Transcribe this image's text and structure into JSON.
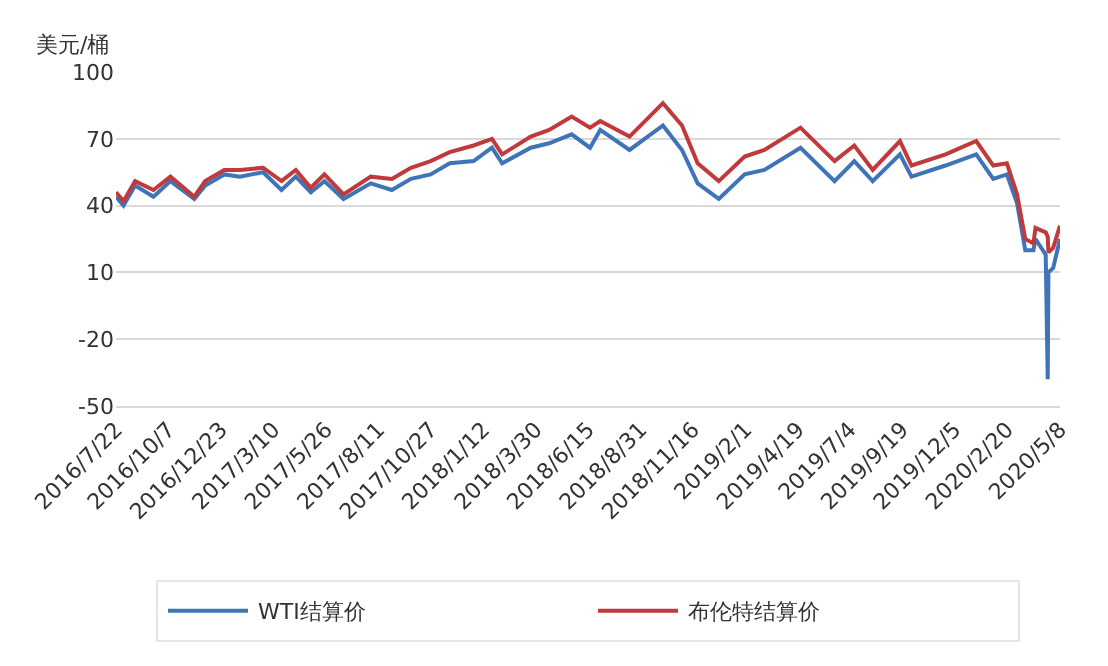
{
  "chart_data": {
    "type": "line",
    "ylabel": "美元/桶",
    "x": [
      "2016-07-22",
      "2016-08-02",
      "2016-08-19",
      "2016-09-15",
      "2016-10-10",
      "2016-11-14",
      "2016-11-30",
      "2016-12-28",
      "2017-01-20",
      "2017-02-23",
      "2017-03-22",
      "2017-04-12",
      "2017-05-04",
      "2017-05-24",
      "2017-06-21",
      "2017-07-31",
      "2017-08-31",
      "2017-09-28",
      "2017-10-27",
      "2017-11-24",
      "2017-12-29",
      "2018-01-25",
      "2018-02-09",
      "2018-03-23",
      "2018-04-19",
      "2018-05-22",
      "2018-06-18",
      "2018-07-03",
      "2018-08-15",
      "2018-10-03",
      "2018-10-31",
      "2018-11-23",
      "2018-12-24",
      "2019-01-31",
      "2019-03-01",
      "2019-04-23",
      "2019-06-12",
      "2019-07-11",
      "2019-08-07",
      "2019-09-16",
      "2019-10-03",
      "2019-11-22",
      "2020-01-06",
      "2020-01-31",
      "2020-02-20",
      "2020-03-06",
      "2020-03-18",
      "2020-03-30",
      "2020-04-02",
      "2020-04-17",
      "2020-04-20",
      "2020-04-21",
      "2020-04-28",
      "2020-05-08"
    ],
    "series": [
      {
        "name": "WTI结算价",
        "color": "#3f74b8",
        "values": [
          44,
          40,
          49,
          44,
          51,
          43,
          49,
          54,
          53,
          55,
          47,
          53,
          46,
          51,
          43,
          50,
          47,
          52,
          54,
          59,
          60,
          66,
          59,
          66,
          68,
          72,
          66,
          74,
          65,
          76,
          65,
          50,
          43,
          54,
          56,
          66,
          51,
          60,
          51,
          63,
          53,
          58,
          63,
          52,
          54,
          41,
          20,
          20,
          25,
          18,
          -38,
          10,
          12,
          25
        ]
      },
      {
        "name": "布伦特结算价",
        "color": "#c0393b",
        "values": [
          46,
          42,
          51,
          47,
          53,
          44,
          51,
          56,
          56,
          57,
          51,
          56,
          48,
          54,
          45,
          53,
          52,
          57,
          60,
          64,
          67,
          70,
          63,
          71,
          74,
          80,
          75,
          78,
          71,
          86,
          76,
          59,
          51,
          62,
          65,
          75,
          60,
          67,
          56,
          69,
          58,
          63,
          69,
          58,
          59,
          45,
          25,
          23,
          30,
          28,
          26,
          19,
          21,
          31
        ]
      }
    ],
    "ylim": [
      -50,
      100
    ],
    "yticks": [
      -50,
      -20,
      10,
      40,
      70,
      100
    ],
    "xlim": [
      "2016-07-22",
      "2020-05-08"
    ],
    "xticks": [
      {
        "value": "2016-07-22",
        "label": "2016/7/22"
      },
      {
        "value": "2016-10-07",
        "label": "2016/10/7"
      },
      {
        "value": "2016-12-23",
        "label": "2016/12/23"
      },
      {
        "value": "2017-03-10",
        "label": "2017/3/10"
      },
      {
        "value": "2017-05-26",
        "label": "2017/5/26"
      },
      {
        "value": "2017-08-11",
        "label": "2017/8/11"
      },
      {
        "value": "2017-10-27",
        "label": "2017/10/27"
      },
      {
        "value": "2018-01-12",
        "label": "2018/1/12"
      },
      {
        "value": "2018-03-30",
        "label": "2018/3/30"
      },
      {
        "value": "2018-06-15",
        "label": "2018/6/15"
      },
      {
        "value": "2018-08-31",
        "label": "2018/8/31"
      },
      {
        "value": "2018-11-16",
        "label": "2018/11/16"
      },
      {
        "value": "2019-02-01",
        "label": "2019/2/1"
      },
      {
        "value": "2019-04-19",
        "label": "2019/4/19"
      },
      {
        "value": "2019-07-04",
        "label": "2019/7/4"
      },
      {
        "value": "2019-09-19",
        "label": "2019/9/19"
      },
      {
        "value": "2019-12-05",
        "label": "2019/12/5"
      },
      {
        "value": "2020-02-20",
        "label": "2020/2/20"
      },
      {
        "value": "2020-05-08",
        "label": "2020/5/8"
      }
    ],
    "grid": "y",
    "legend": "bottom",
    "line_style": "solid",
    "marker": "none"
  }
}
